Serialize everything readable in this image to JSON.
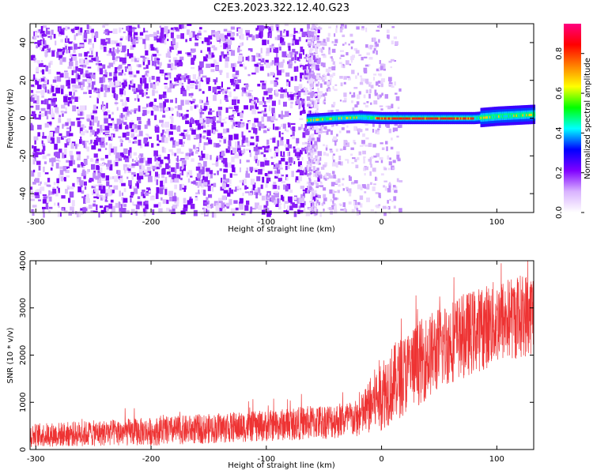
{
  "title": "C2E3.2023.322.12.40.G23",
  "chart_data": [
    {
      "type": "heatmap",
      "xlabel": "Height of straight line (km)",
      "ylabel": "Frequency (Hz)",
      "xlim": [
        -305,
        132
      ],
      "ylim": [
        -50,
        50
      ],
      "xticks": [
        -300,
        -200,
        -100,
        0,
        100
      ],
      "yticks": [
        -40,
        -20,
        0,
        20,
        40
      ],
      "colorbar": {
        "label": "Normalized spectral amplitude",
        "range": [
          0.0,
          0.95
        ],
        "ticks": [
          0.0,
          0.2,
          0.4,
          0.6,
          0.8
        ],
        "colormap": [
          "#ffffff",
          "#d9b3ff",
          "#8000ff",
          "#0000ff",
          "#00ffff",
          "#00ff00",
          "#ffff00",
          "#ff8000",
          "#ff0000",
          "#ff0080"
        ]
      },
      "noise_region_km": [
        -305,
        -65
      ],
      "signal_track": {
        "start_km": -65,
        "end_km": 132,
        "frequency_hz": [
          {
            "x": -65,
            "y": -1
          },
          {
            "x": -40,
            "y": 0
          },
          {
            "x": -20,
            "y": 0.5
          },
          {
            "x": 0,
            "y": 0
          },
          {
            "x": 40,
            "y": 0
          },
          {
            "x": 80,
            "y": 0
          },
          {
            "x": 100,
            "y": 1
          },
          {
            "x": 132,
            "y": 2
          }
        ]
      }
    },
    {
      "type": "line",
      "xlabel": "Height of straight line (km)",
      "ylabel": "SNR (10 * v/v)",
      "xlim": [
        -305,
        132
      ],
      "ylim": [
        0,
        4000
      ],
      "xticks": [
        -300,
        -200,
        -100,
        0,
        100
      ],
      "yticks": [
        0,
        1000,
        2000,
        3000,
        4000
      ],
      "color": "#ee3333",
      "series": [
        {
          "trend": [
            {
              "x": -305,
              "mean": 300,
              "spread": 250
            },
            {
              "x": -200,
              "mean": 380,
              "spread": 300
            },
            {
              "x": -100,
              "mean": 500,
              "spread": 330
            },
            {
              "x": -20,
              "mean": 650,
              "spread": 400
            },
            {
              "x": 0,
              "mean": 1200,
              "spread": 800
            },
            {
              "x": 30,
              "mean": 1800,
              "spread": 900
            },
            {
              "x": 60,
              "mean": 2300,
              "spread": 900
            },
            {
              "x": 100,
              "mean": 2700,
              "spread": 900
            },
            {
              "x": 132,
              "mean": 2900,
              "spread": 900
            }
          ]
        }
      ]
    }
  ]
}
